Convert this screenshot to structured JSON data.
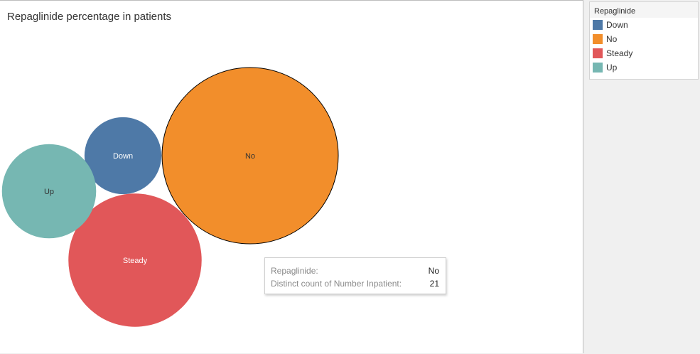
{
  "chart_title": "Repaglinide percentage in patients",
  "chart_data": {
    "type": "packed-bubble",
    "title": "Repaglinide percentage in patients",
    "measure": "Distinct count of Number Inpatient",
    "dimension": "Repaglinide",
    "categories": [
      "Down",
      "No",
      "Steady",
      "Up"
    ],
    "values": [
      4,
      21,
      12,
      6
    ],
    "colors": {
      "Down": "#4e79a7",
      "No": "#f28e2b",
      "Steady": "#e15759",
      "Up": "#76b7b2"
    },
    "label_colors": {
      "Down": "#ffffff",
      "No": "#333333",
      "Steady": "#ffffff",
      "Up": "#333333"
    },
    "selected": "No",
    "legend_position": "right"
  },
  "legend": {
    "title": "Repaglinide",
    "items": [
      "Down",
      "No",
      "Steady",
      "Up"
    ]
  },
  "tooltip": {
    "rows": [
      {
        "key": "Repaglinide:",
        "value": "No"
      },
      {
        "key": "Distinct count of Number Inpatient:",
        "value": "21"
      }
    ]
  }
}
